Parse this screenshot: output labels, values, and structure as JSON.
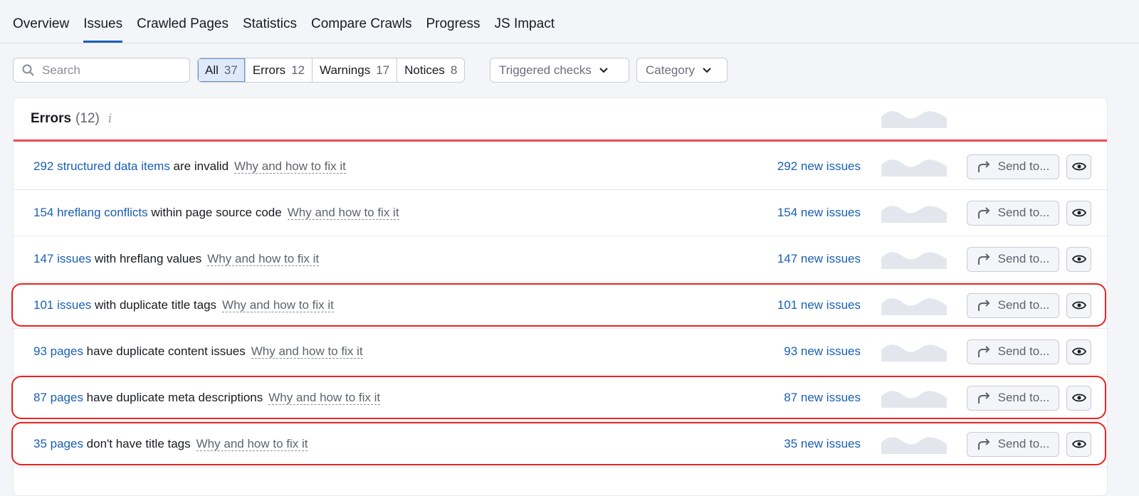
{
  "tabs": [
    "Overview",
    "Issues",
    "Crawled Pages",
    "Statistics",
    "Compare Crawls",
    "Progress",
    "JS Impact"
  ],
  "active_tab": "Issues",
  "search": {
    "placeholder": "Search"
  },
  "filters": [
    {
      "label": "All",
      "count": "37"
    },
    {
      "label": "Errors",
      "count": "12"
    },
    {
      "label": "Warnings",
      "count": "17"
    },
    {
      "label": "Notices",
      "count": "8"
    }
  ],
  "dropdowns": {
    "triggered": "Triggered checks",
    "category": "Category"
  },
  "section": {
    "title": "Errors",
    "count": "(12)",
    "info": "i"
  },
  "row_actions": {
    "why": "Why and how to fix it",
    "send": "Send to..."
  },
  "rows": [
    {
      "link": "292 structured data items",
      "rest": " are invalid",
      "new": "292 new issues",
      "highlighted": false
    },
    {
      "link": "154 hreflang conflicts",
      "rest": " within page source code",
      "new": "154 new issues",
      "highlighted": false
    },
    {
      "link": "147 issues",
      "rest": " with hreflang values",
      "new": "147 new issues",
      "highlighted": false
    },
    {
      "link": "101 issues",
      "rest": " with duplicate title tags",
      "new": "101 new issues",
      "highlighted": true
    },
    {
      "link": "93 pages",
      "rest": " have duplicate content issues",
      "new": "93 new issues",
      "highlighted": false
    },
    {
      "link": "87 pages",
      "rest": " have duplicate meta descriptions",
      "new": "87 new issues",
      "highlighted": true
    },
    {
      "link": "35 pages",
      "rest": " don't have title tags",
      "new": "35 new issues",
      "highlighted": true
    }
  ],
  "colors": {
    "accent": "#1a5fb4",
    "error": "#f04a55",
    "highlight": "#e8231f"
  }
}
